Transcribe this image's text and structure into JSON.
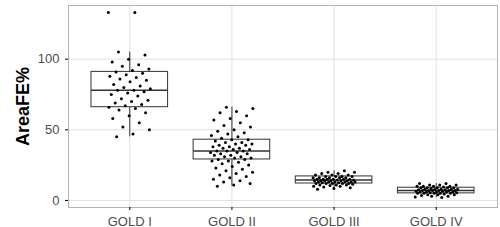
{
  "chart_data": {
    "type": "box",
    "y_label": "AreaFE%",
    "categories": [
      "GOLD I",
      "GOLD II",
      "GOLD III",
      "GOLD IV"
    ],
    "box": [
      {
        "low": 45,
        "q1": 66,
        "median": 78,
        "q3": 91,
        "high": 105
      },
      {
        "low": 10,
        "q1": 29,
        "median": 35,
        "q3": 43,
        "high": 66
      },
      {
        "low": 8,
        "q1": 12,
        "median": 14.5,
        "q3": 17,
        "high": 21
      },
      {
        "low": 2,
        "q1": 5,
        "median": 7,
        "q3": 9,
        "high": 12
      }
    ],
    "values": [
      [
        133,
        133,
        105,
        103,
        100,
        98,
        96,
        95,
        93,
        92,
        91,
        90,
        89,
        88,
        87,
        86,
        85,
        84,
        82,
        81,
        80,
        79,
        78,
        78,
        77,
        76,
        75,
        74,
        72,
        71,
        70,
        69,
        68,
        67,
        66,
        65,
        64,
        62,
        60,
        58,
        55,
        52,
        50,
        47,
        45
      ],
      [
        66,
        65,
        63,
        62,
        60,
        58,
        57,
        55,
        53,
        52,
        50,
        49,
        48,
        47,
        46,
        45,
        44,
        43,
        43,
        42,
        41,
        41,
        40,
        40,
        39,
        39,
        38,
        38,
        37,
        37,
        36,
        36,
        35,
        35,
        35,
        34,
        34,
        33,
        33,
        32,
        32,
        31,
        31,
        30,
        30,
        29,
        29,
        28,
        28,
        27,
        26,
        25,
        24,
        23,
        22,
        21,
        20,
        19,
        18,
        17,
        16,
        15,
        14,
        13,
        12,
        11,
        10
      ],
      [
        21,
        20,
        20,
        19,
        19,
        18,
        18,
        18,
        17,
        17,
        17,
        17,
        16,
        16,
        16,
        16,
        16,
        15,
        15,
        15,
        15,
        15,
        15,
        14.5,
        14.5,
        14,
        14,
        14,
        14,
        14,
        14,
        13,
        13,
        13,
        13,
        13,
        13,
        12.5,
        12.5,
        12,
        12,
        12,
        12,
        12,
        11.5,
        11,
        11,
        11,
        10.5,
        10,
        10,
        9.5,
        9,
        8.5,
        8
      ],
      [
        12,
        12,
        11,
        11,
        11,
        10,
        10,
        10,
        10,
        9.5,
        9,
        9,
        9,
        9,
        9,
        8.5,
        8,
        8,
        8,
        8,
        8,
        7.5,
        7.5,
        7,
        7,
        7,
        7,
        7,
        7,
        6.5,
        6.5,
        6,
        6,
        6,
        6,
        6,
        5.5,
        5.5,
        5,
        5,
        5,
        5,
        5,
        4.5,
        4,
        4,
        4,
        3.5,
        3,
        3,
        2.5,
        2
      ]
    ],
    "color": "#000000",
    "ylim": [
      -5,
      138
    ],
    "yticks": [
      0,
      50,
      100
    ],
    "grid": true
  }
}
